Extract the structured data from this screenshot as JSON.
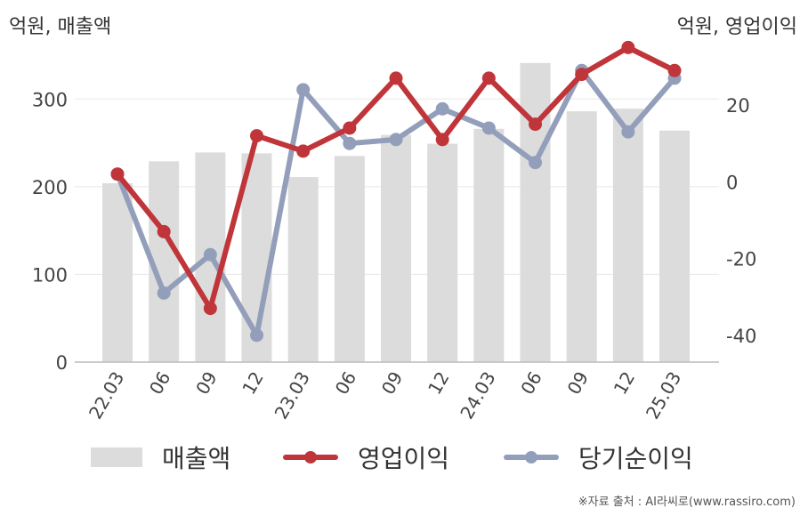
{
  "units": {
    "left": "억원, 매출액",
    "right": "억원, 영업이익"
  },
  "colors": {
    "revenue": "#dcdcdc",
    "operating_profit": "#c0353a",
    "net_profit": "#939fba",
    "grid": "#e8e8e8",
    "axis": "#bbbbbb"
  },
  "chart_data": {
    "type": "bar",
    "categories": [
      "22.03",
      "06",
      "09",
      "12",
      "23.03",
      "06",
      "09",
      "12",
      "24.03",
      "06",
      "09",
      "12",
      "25.03"
    ],
    "left_axis": {
      "ylim": [
        0,
        350
      ],
      "ticks": [
        0,
        100,
        200,
        300
      ]
    },
    "right_axis": {
      "ylim": [
        -47,
        33
      ],
      "ticks": [
        -40,
        -20,
        0,
        20
      ]
    },
    "series": [
      {
        "name": "매출액",
        "type": "bar",
        "axis": "left",
        "values": [
          204,
          229,
          239,
          238,
          211,
          235,
          259,
          249,
          266,
          341,
          286,
          289,
          264
        ]
      },
      {
        "name": "영업이익",
        "type": "line",
        "axis": "right",
        "values": [
          2,
          -13,
          -33,
          12,
          8,
          14,
          27,
          11,
          27,
          15,
          28,
          35,
          29
        ]
      },
      {
        "name": "당기순이익",
        "type": "line",
        "axis": "right",
        "values": [
          2,
          -29,
          -19,
          -40,
          24,
          10,
          11,
          19,
          14,
          5,
          29,
          13,
          27
        ]
      }
    ]
  },
  "source": "※자료 출처 : AI라씨로(www.rassiro.com)"
}
